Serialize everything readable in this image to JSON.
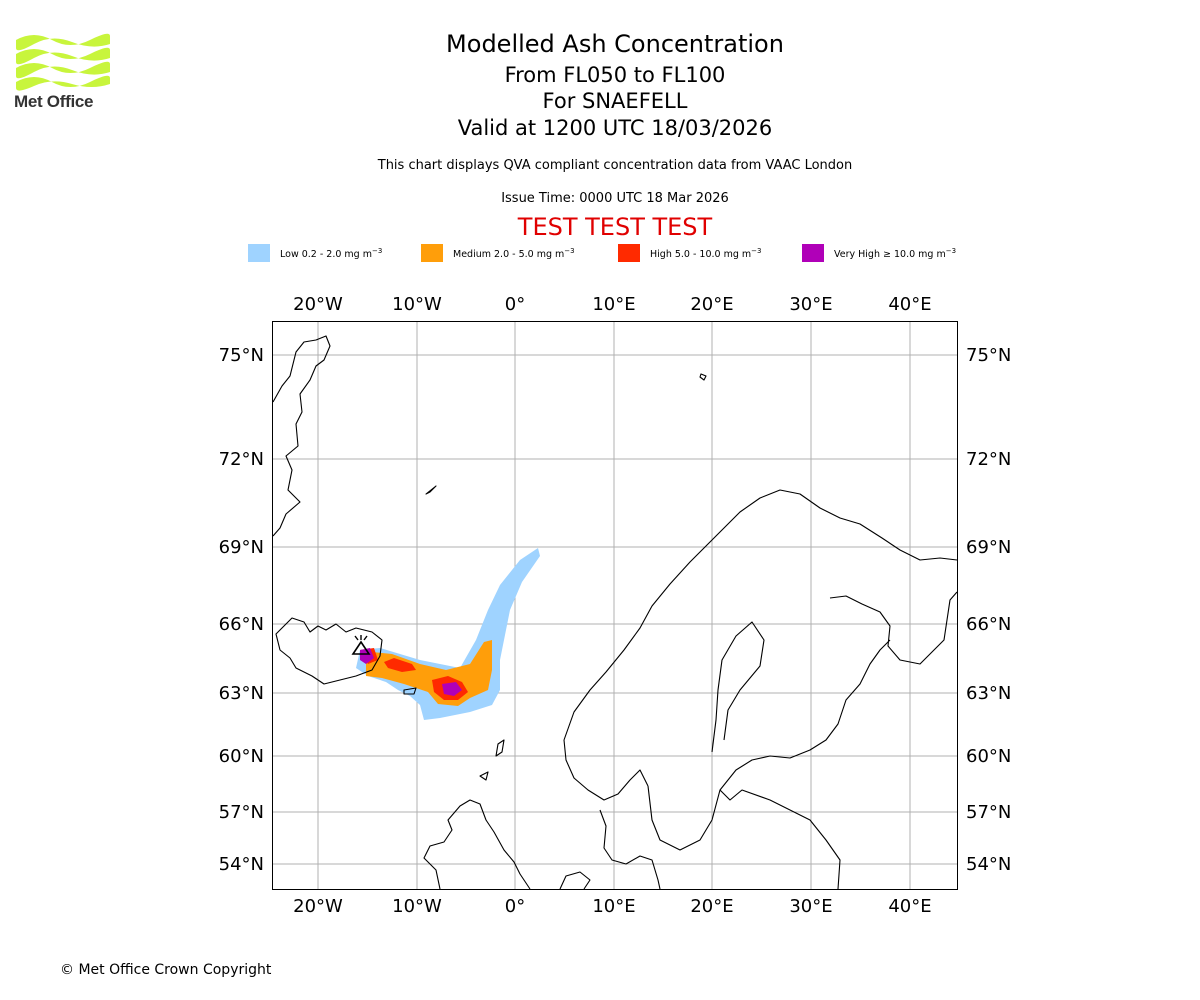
{
  "logo": {
    "text": "Met Office",
    "color": "#c8f53c"
  },
  "titles": {
    "main": "Modelled Ash Concentration",
    "levels": "From FL050 to FL100",
    "volcano": "For SNAEFELL",
    "valid": "Valid at 1200 UTC 18/03/2026",
    "note": "This chart displays QVA compliant concentration data from VAAC London",
    "issue": "Issue Time: 0000 UTC 18 Mar 2026",
    "test": "TEST TEST TEST"
  },
  "legend": [
    {
      "label": "Low 0.2 - 2.0 mg m",
      "color": "#9fd3ff"
    },
    {
      "label": "Medium 2.0 - 5.0 mg m",
      "color": "#ff9e0a"
    },
    {
      "label": "High 5.0 - 10.0 mg m",
      "color": "#ff2a00"
    },
    {
      "label": "Very High  ≥  10.0 mg m",
      "color": "#b000b8"
    }
  ],
  "legend_unit_exp": "−3",
  "map": {
    "lon_range": [
      -25,
      45
    ],
    "lat_range": [
      53,
      76
    ],
    "lon_ticks": [
      "20°W",
      "10°W",
      "0°",
      "10°E",
      "20°E",
      "30°E",
      "40°E"
    ],
    "lat_ticks": [
      "75°N",
      "72°N",
      "69°N",
      "66°N",
      "63°N",
      "60°N",
      "57°N",
      "54°N"
    ],
    "grid": true,
    "volcano_marker": "volcano-icon"
  },
  "copyright": "© Met Office Crown Copyright"
}
